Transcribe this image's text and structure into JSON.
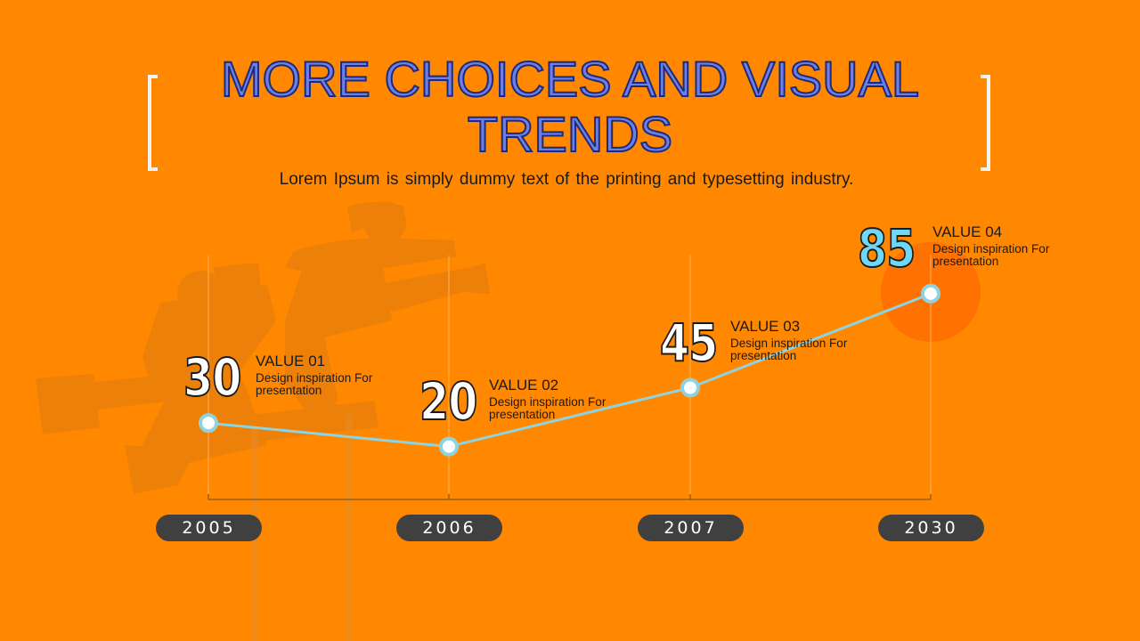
{
  "slide": {
    "title_line1": "MORE CHOICES AND VISUAL",
    "title_line2": "TRENDS",
    "subtitle": "Lorem Ipsum is simply dummy text of the printing and typesetting industry."
  },
  "colors": {
    "background": "#ff8800",
    "line": "#8fd3e0",
    "accent_number": "#6ed8f7",
    "pill": "#404040",
    "title_fill": "#6d7fe6"
  },
  "items": [
    {
      "year": "2005",
      "number": "30",
      "label": "VALUE 01",
      "desc": "Design inspiration For presentation"
    },
    {
      "year": "2006",
      "number": "20",
      "label": "VALUE 02",
      "desc": "Design inspiration For presentation"
    },
    {
      "year": "2007",
      "number": "45",
      "label": "VALUE 03",
      "desc": "Design inspiration For presentation"
    },
    {
      "year": "2030",
      "number": "85",
      "label": "VALUE 04",
      "desc": "Design inspiration For presentation"
    }
  ],
  "chart_data": {
    "type": "line",
    "categories": [
      "2005",
      "2006",
      "2007",
      "2030"
    ],
    "series": [
      {
        "values": [
          30,
          20,
          45,
          85
        ]
      }
    ],
    "ylim": [
      0,
      100
    ],
    "grid": false
  }
}
